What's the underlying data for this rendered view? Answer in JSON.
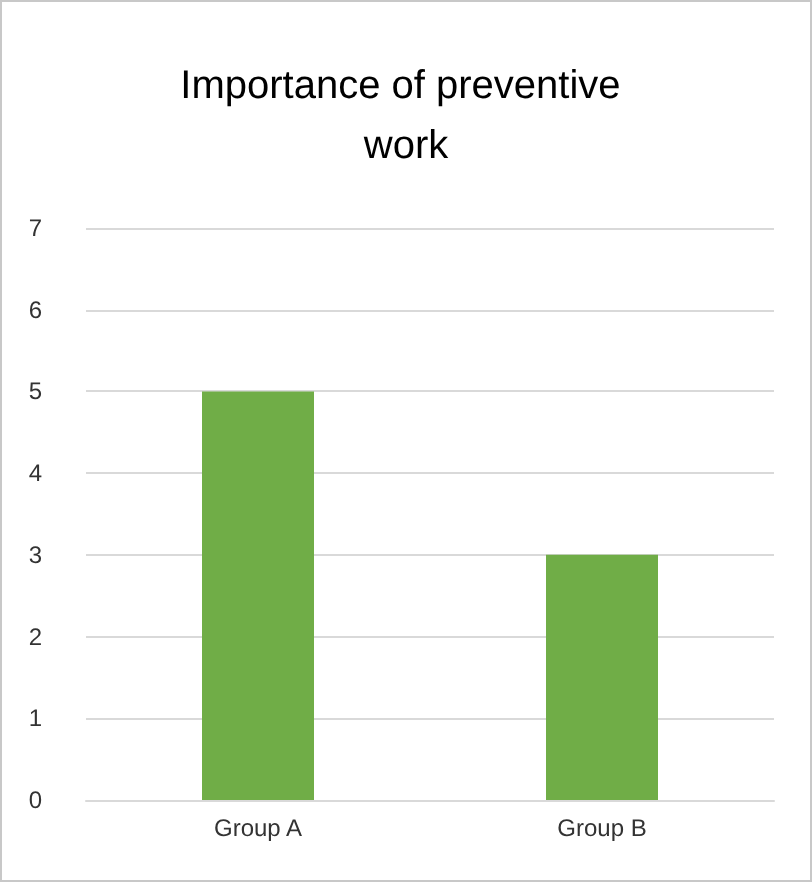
{
  "chart_data": {
    "type": "bar",
    "title": "Importance of preventive work",
    "categories": [
      "Group A",
      "Group B"
    ],
    "values": [
      5,
      3
    ],
    "color": "#70ad47",
    "ylim": [
      0,
      7
    ],
    "yticks": [
      0,
      1,
      2,
      3,
      4,
      5,
      6,
      7
    ],
    "grid": true
  }
}
